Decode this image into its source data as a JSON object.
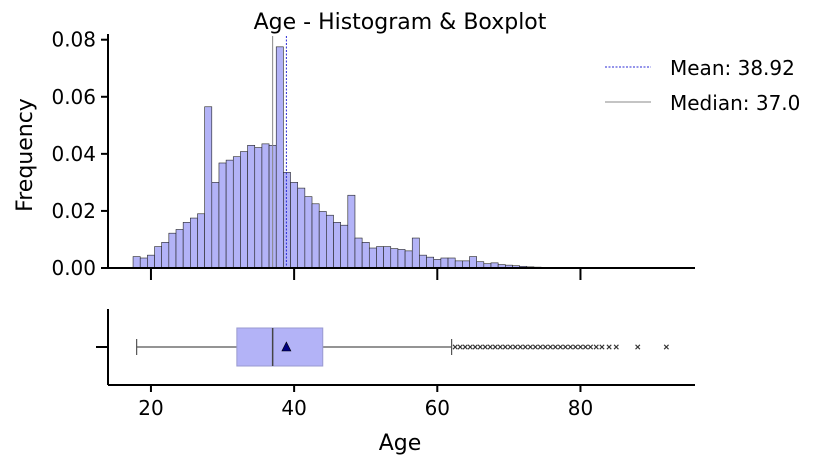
{
  "chart_data": [
    {
      "type": "bar",
      "subtype": "histogram",
      "title": "Age - Histogram & Boxplot",
      "ylabel": "Frequency",
      "xlim": [
        14,
        96
      ],
      "ylim": [
        0,
        0.082
      ],
      "yticks": [
        0.0,
        0.02,
        0.04,
        0.06,
        0.08
      ],
      "ytick_labels": [
        "0.00",
        "0.02",
        "0.04",
        "0.06",
        "0.08"
      ],
      "xticks": [
        20,
        40,
        60,
        80
      ],
      "bin_start": 17.5,
      "bin_width": 1,
      "values": [
        0.004,
        0.0035,
        0.0045,
        0.0075,
        0.009,
        0.0122,
        0.0135,
        0.016,
        0.0175,
        0.019,
        0.0565,
        0.03,
        0.0368,
        0.0378,
        0.039,
        0.0408,
        0.043,
        0.0422,
        0.0435,
        0.043,
        0.0775,
        0.0335,
        0.03,
        0.028,
        0.025,
        0.0225,
        0.0198,
        0.0185,
        0.016,
        0.015,
        0.0255,
        0.0105,
        0.009,
        0.007,
        0.0075,
        0.0075,
        0.0068,
        0.0065,
        0.006,
        0.0105,
        0.0045,
        0.0038,
        0.003,
        0.0035,
        0.0035,
        0.0025,
        0.0025,
        0.004,
        0.0022,
        0.0015,
        0.0018,
        0.0012,
        0.001,
        0.0008,
        0.0006,
        0.0004,
        0.0003,
        0.0002,
        0.0002,
        0.0001,
        0.0002,
        0.0001,
        0.0,
        0.0001,
        0.0,
        0.0,
        0.0001
      ],
      "color": "#b3b3f7",
      "edge_color": "#222222",
      "mean": 38.92,
      "median": 37.0,
      "legend": [
        {
          "label": "Mean: 38.92",
          "style": "dashed",
          "color": "#2a2ad6"
        },
        {
          "label": "Median: 37.0",
          "style": "solid",
          "color": "#888888"
        }
      ],
      "legend_position": "top-right"
    },
    {
      "type": "boxplot",
      "xlabel": "Age",
      "xticks": [
        20,
        40,
        60,
        80
      ],
      "whisker_low": 18,
      "q1": 32,
      "median": 37,
      "q3": 44,
      "whisker_high": 62,
      "mean": 38.92,
      "outliers": [
        62.5,
        63.2,
        63.9,
        64.6,
        65.3,
        66.0,
        66.7,
        67.4,
        68.1,
        68.8,
        69.5,
        70.2,
        70.9,
        71.6,
        72.3,
        73.0,
        73.7,
        74.4,
        75.1,
        75.8,
        76.5,
        77.2,
        77.9,
        78.6,
        79.3,
        80.0,
        80.7,
        81.4,
        82.2,
        83.0,
        84.0,
        85.0,
        88.0,
        92.0
      ],
      "box_color": "#b3b3f7",
      "mean_marker_color": "#000080"
    }
  ]
}
